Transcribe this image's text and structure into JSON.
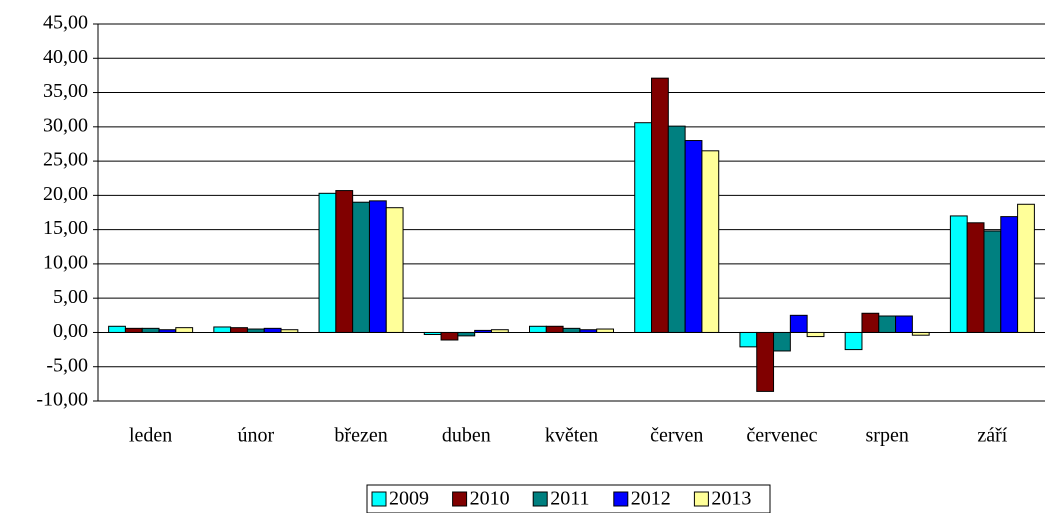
{
  "chart_data": {
    "type": "bar",
    "categories": [
      "leden",
      "únor",
      "březen",
      "duben",
      "květen",
      "červen",
      "červenec",
      "srpen",
      "září"
    ],
    "series": [
      {
        "name": "2009",
        "color": "#00ffff",
        "values": [
          0.9,
          0.8,
          20.3,
          -0.3,
          0.9,
          30.6,
          -2.1,
          -2.5,
          17.0
        ]
      },
      {
        "name": "2010",
        "color": "#800000",
        "values": [
          0.6,
          0.7,
          20.7,
          -1.1,
          0.9,
          37.1,
          -8.6,
          2.8,
          16.0
        ]
      },
      {
        "name": "2011",
        "color": "#008080",
        "values": [
          0.6,
          0.5,
          19.0,
          -0.5,
          0.6,
          30.1,
          -2.7,
          2.4,
          14.8
        ]
      },
      {
        "name": "2012",
        "color": "#0000ff",
        "values": [
          0.4,
          0.6,
          19.2,
          0.3,
          0.4,
          28.0,
          2.5,
          2.4,
          16.9
        ]
      },
      {
        "name": "2013",
        "color": "#ffff99",
        "values": [
          0.7,
          0.4,
          18.2,
          0.4,
          0.5,
          26.5,
          -0.6,
          -0.4,
          18.7
        ]
      }
    ],
    "ylim": [
      -10,
      45
    ],
    "yticks": [
      {
        "value": -10,
        "label": "-10,00"
      },
      {
        "value": -5,
        "label": "-5,00"
      },
      {
        "value": 0,
        "label": "0,00"
      },
      {
        "value": 5,
        "label": "5,00"
      },
      {
        "value": 10,
        "label": "10,00"
      },
      {
        "value": 15,
        "label": "15,00"
      },
      {
        "value": 20,
        "label": "20,00"
      },
      {
        "value": 25,
        "label": "25,00"
      },
      {
        "value": 30,
        "label": "30,00"
      },
      {
        "value": 35,
        "label": "35,00"
      },
      {
        "value": 40,
        "label": "40,00"
      },
      {
        "value": 45,
        "label": "45,00"
      }
    ],
    "grid": true,
    "legend": "bottom"
  }
}
